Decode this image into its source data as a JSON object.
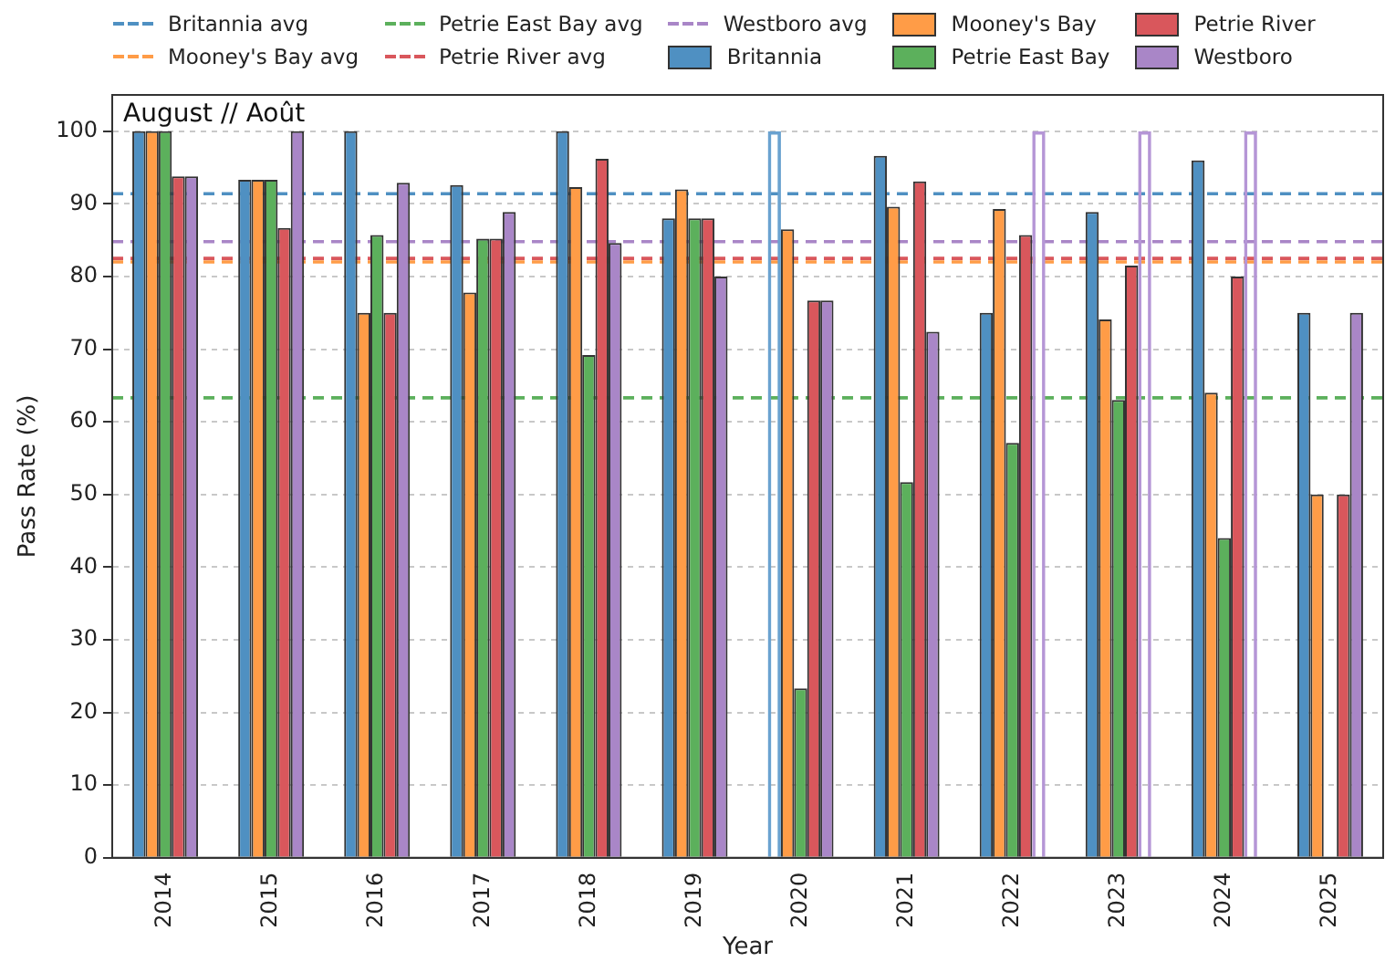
{
  "chart_data": {
    "type": "bar",
    "title": "August // Août",
    "xlabel": "Year",
    "ylabel": "Pass Rate (%)",
    "categories": [
      "2014",
      "2015",
      "2016",
      "2017",
      "2018",
      "2019",
      "2020",
      "2021",
      "2022",
      "2023",
      "2024",
      "2025"
    ],
    "series": [
      {
        "name": "Britannia",
        "color": "#4f90c2",
        "values": [
          100,
          93.3,
          100,
          92.6,
          100,
          88,
          100,
          96.6,
          75,
          88.9,
          96,
          75
        ],
        "colors": [
          "#4f90c2",
          "#4f90c2",
          "#4f90c2",
          "#4f90c2",
          "#4f90c2",
          "#4f90c2",
          "#6aa2d0",
          "#4f90c2",
          "#4f90c2",
          "#4f90c2",
          "#4f90c2",
          "#4f90c2"
        ]
      },
      {
        "name": "Mooney's Bay",
        "color": "#ff9c47",
        "values": [
          100,
          93.3,
          75,
          77.8,
          92.3,
          92,
          86.5,
          89.6,
          89.3,
          74.1,
          64,
          50
        ]
      },
      {
        "name": "Petrie East Bay",
        "color": "#5cb05c",
        "values": [
          100,
          93.3,
          85.7,
          85.2,
          69.2,
          88,
          23.3,
          51.7,
          57.1,
          63,
          44,
          null
        ]
      },
      {
        "name": "Petrie River",
        "color": "#d9575c",
        "values": [
          93.8,
          86.7,
          75,
          85.2,
          96.2,
          88,
          76.7,
          93.1,
          85.7,
          81.5,
          80,
          50
        ]
      },
      {
        "name": "Westboro",
        "color": "#a986c7",
        "values": [
          93.8,
          100,
          92.9,
          88.9,
          84.6,
          80,
          76.7,
          72.4,
          100,
          100,
          100,
          75
        ],
        "colors": [
          "#a986c7",
          "#a986c7",
          "#a986c7",
          "#a986c7",
          "#a986c7",
          "#a986c7",
          "#a986c7",
          "#a986c7",
          "#b596d6",
          "#b596d6",
          "#b596d6",
          "#a986c7"
        ]
      }
    ],
    "ref_lines": [
      {
        "axis": "y",
        "value": 91.4,
        "label": "Britannia avg",
        "color": "#4f90c2",
        "line_style": "dashed"
      },
      {
        "axis": "y",
        "value": 82.0,
        "label": "Mooney's Bay avg",
        "color": "#ff9c47",
        "line_style": "dashed"
      },
      {
        "axis": "y",
        "value": 63.3,
        "label": "Petrie East Bay avg",
        "color": "#5cb05c",
        "line_style": "dashed"
      },
      {
        "axis": "y",
        "value": 82.5,
        "label": "Petrie River avg",
        "color": "#d9575c",
        "line_style": "dashed"
      },
      {
        "axis": "y",
        "value": 84.8,
        "label": "Westboro avg",
        "color": "#a986c7",
        "line_style": "dashed"
      }
    ],
    "ylim": [
      0,
      105
    ],
    "yticks": [
      0,
      10,
      20,
      30,
      40,
      50,
      60,
      70,
      80,
      90,
      100
    ],
    "grid": "y",
    "legend": "top"
  }
}
